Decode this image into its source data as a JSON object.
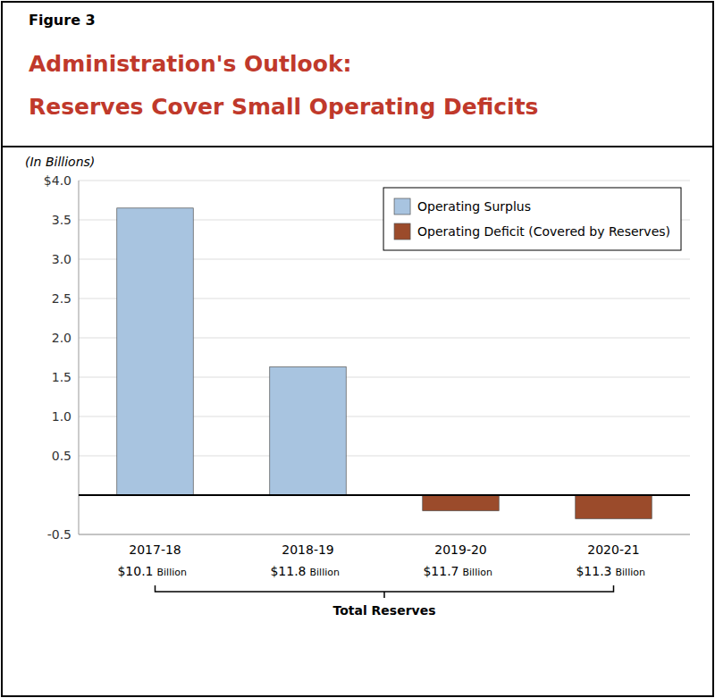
{
  "chart_data": {
    "type": "bar",
    "figure_label": "Figure 3",
    "title": [
      "Administration's Outlook:",
      "Reserves Cover Small Operating Deficits"
    ],
    "title_color": "#c0392b",
    "subtitle": "(In Billions)",
    "categories": [
      "2017-18",
      "2018-19",
      "2019-20",
      "2020-21"
    ],
    "values": [
      3.65,
      1.63,
      -0.2,
      -0.3
    ],
    "colors": [
      "#a8c4e0",
      "#a8c4e0",
      "#9b4b2b",
      "#9b4b2b"
    ],
    "legend_items": [
      {
        "name": "Operating Surplus",
        "color": "#a8c4e0"
      },
      {
        "name": "Operating Deficit (Covered by Reserves)",
        "color": "#9b4b2b"
      }
    ],
    "legend": "upper right",
    "reserves": {
      "values": [
        10.1,
        11.8,
        11.7,
        11.3
      ],
      "value_labels": [
        "$10.1",
        "$11.8",
        "$11.7",
        "$11.3"
      ],
      "unit": "Billion",
      "label": "Total Reserves"
    },
    "ylim": [
      -0.5,
      4.0
    ],
    "yticks": [
      -0.5,
      {
        "value": 0.0,
        "label": null
      },
      0.5,
      {
        "value": 1.0,
        "label": "1.0"
      },
      1.5,
      {
        "value": 2.0,
        "label": "2.0"
      },
      2.5,
      {
        "value": 3.0,
        "label": "3.0"
      },
      3.5,
      {
        "value": 4.0,
        "label": "$4.0"
      }
    ],
    "grid": true
  }
}
